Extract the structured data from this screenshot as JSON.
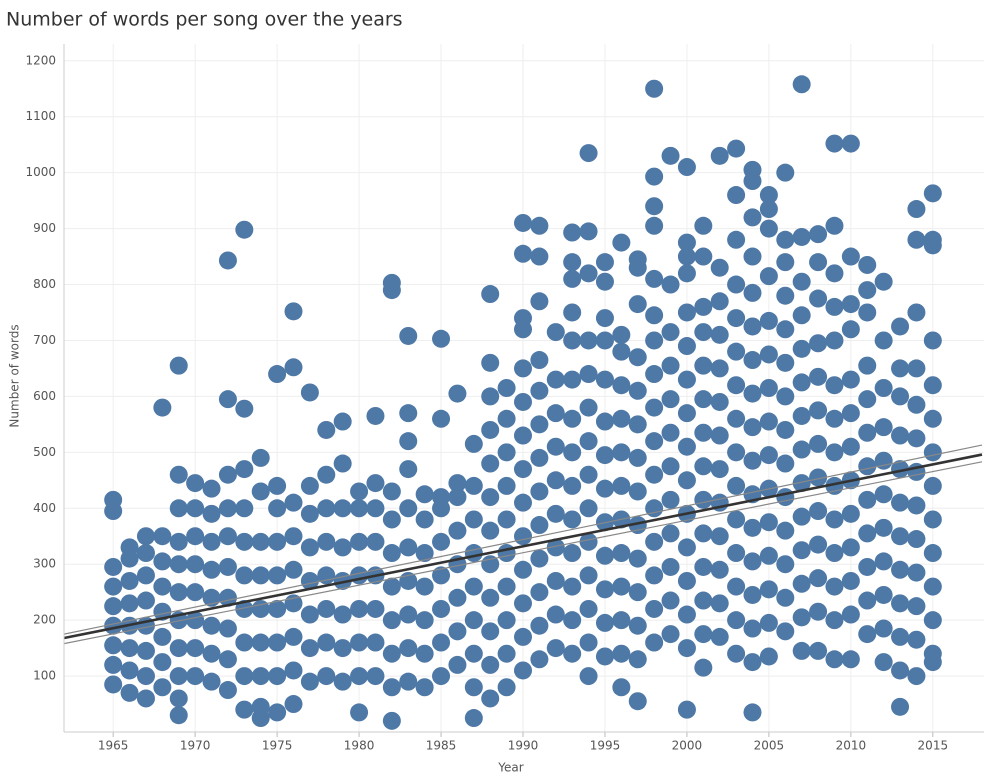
{
  "chart_data": {
    "type": "scatter",
    "title": "Number of words per song over the years",
    "x_label": "Year",
    "y_label": "Number of words",
    "color": "#4e78a6",
    "grid": true,
    "xlim": [
      1962,
      2018
    ],
    "xticks": [
      1965,
      1970,
      1975,
      1980,
      1985,
      1990,
      1995,
      2000,
      2005,
      2010,
      2015
    ],
    "ylim": [
      0,
      1230
    ],
    "yticks": [
      100,
      200,
      300,
      400,
      500,
      600,
      700,
      800,
      900,
      1000,
      1100,
      1200
    ],
    "trend": {
      "x": [
        1962,
        2018
      ],
      "y": [
        168,
        496
      ]
    },
    "trend_upper": {
      "x": [
        1962,
        2018
      ],
      "y": [
        175,
        513
      ]
    },
    "trend_lower": {
      "x": [
        1962,
        2018
      ],
      "y": [
        158,
        483
      ]
    },
    "groups": [
      {
        "x": 1965,
        "values": [
          85,
          120,
          155,
          190,
          225,
          260,
          295,
          395,
          415
        ]
      },
      {
        "x": 1966,
        "values": [
          70,
          110,
          150,
          190,
          230,
          270,
          310,
          330
        ]
      },
      {
        "x": 1967,
        "values": [
          60,
          100,
          145,
          190,
          235,
          280,
          320,
          350
        ]
      },
      {
        "x": 1968,
        "values": [
          80,
          125,
          170,
          215,
          260,
          305,
          350,
          580
        ]
      },
      {
        "x": 1969,
        "values": [
          30,
          60,
          100,
          150,
          200,
          250,
          300,
          340,
          400,
          460,
          655
        ]
      },
      {
        "x": 1970,
        "values": [
          100,
          150,
          200,
          250,
          300,
          350,
          400,
          445
        ]
      },
      {
        "x": 1971,
        "values": [
          90,
          140,
          190,
          240,
          290,
          340,
          390,
          435
        ]
      },
      {
        "x": 1972,
        "values": [
          75,
          130,
          185,
          240,
          295,
          350,
          400,
          460,
          595,
          843
        ]
      },
      {
        "x": 1973,
        "values": [
          40,
          100,
          160,
          220,
          280,
          340,
          400,
          470,
          578,
          898
        ]
      },
      {
        "x": 1974,
        "values": [
          25,
          45,
          100,
          160,
          220,
          280,
          340,
          430,
          490
        ]
      },
      {
        "x": 1975,
        "values": [
          35,
          100,
          160,
          220,
          280,
          340,
          400,
          440,
          640
        ]
      },
      {
        "x": 1976,
        "values": [
          50,
          110,
          170,
          230,
          290,
          350,
          410,
          652,
          752
        ]
      },
      {
        "x": 1977,
        "values": [
          90,
          150,
          210,
          270,
          330,
          390,
          440,
          607
        ]
      },
      {
        "x": 1978,
        "values": [
          100,
          160,
          220,
          280,
          340,
          400,
          460,
          540
        ]
      },
      {
        "x": 1979,
        "values": [
          90,
          150,
          210,
          270,
          330,
          400,
          480,
          555
        ]
      },
      {
        "x": 1980,
        "values": [
          35,
          100,
          160,
          220,
          280,
          340,
          400,
          430
        ]
      },
      {
        "x": 1981,
        "values": [
          100,
          160,
          220,
          280,
          340,
          400,
          445,
          565
        ]
      },
      {
        "x": 1982,
        "values": [
          20,
          80,
          140,
          200,
          260,
          320,
          380,
          430,
          790,
          803
        ]
      },
      {
        "x": 1983,
        "values": [
          90,
          150,
          210,
          270,
          330,
          400,
          470,
          520,
          570,
          708
        ]
      },
      {
        "x": 1984,
        "values": [
          80,
          140,
          200,
          260,
          320,
          380,
          425
        ]
      },
      {
        "x": 1985,
        "values": [
          100,
          160,
          220,
          280,
          340,
          400,
          420,
          560,
          703
        ]
      },
      {
        "x": 1986,
        "values": [
          120,
          180,
          240,
          300,
          360,
          420,
          445,
          605
        ]
      },
      {
        "x": 1987,
        "values": [
          25,
          80,
          140,
          200,
          260,
          320,
          380,
          440,
          515
        ]
      },
      {
        "x": 1988,
        "values": [
          60,
          120,
          180,
          240,
          300,
          360,
          420,
          480,
          540,
          600,
          660,
          783
        ]
      },
      {
        "x": 1989,
        "values": [
          80,
          140,
          200,
          260,
          320,
          380,
          440,
          500,
          560,
          615
        ]
      },
      {
        "x": 1990,
        "values": [
          110,
          170,
          230,
          290,
          350,
          410,
          470,
          530,
          590,
          650,
          720,
          740,
          855,
          910
        ]
      },
      {
        "x": 1991,
        "values": [
          130,
          190,
          250,
          310,
          370,
          430,
          490,
          550,
          610,
          665,
          770,
          850,
          905
        ]
      },
      {
        "x": 1992,
        "values": [
          150,
          210,
          270,
          330,
          390,
          450,
          510,
          570,
          630,
          715
        ]
      },
      {
        "x": 1993,
        "values": [
          140,
          200,
          260,
          320,
          380,
          440,
          500,
          560,
          630,
          700,
          750,
          810,
          840,
          893
        ]
      },
      {
        "x": 1994,
        "values": [
          100,
          160,
          220,
          280,
          340,
          400,
          460,
          520,
          580,
          640,
          700,
          820,
          895,
          1035
        ]
      },
      {
        "x": 1995,
        "values": [
          135,
          195,
          255,
          315,
          375,
          435,
          495,
          555,
          630,
          700,
          740,
          805,
          840
        ]
      },
      {
        "x": 1996,
        "values": [
          80,
          140,
          200,
          260,
          320,
          380,
          440,
          500,
          560,
          620,
          680,
          710,
          875
        ]
      },
      {
        "x": 1997,
        "values": [
          55,
          130,
          190,
          250,
          310,
          370,
          430,
          490,
          550,
          610,
          670,
          765,
          830,
          845
        ]
      },
      {
        "x": 1998,
        "values": [
          160,
          220,
          280,
          340,
          400,
          460,
          520,
          580,
          640,
          700,
          745,
          810,
          905,
          940,
          993,
          1150
        ]
      },
      {
        "x": 1999,
        "values": [
          175,
          235,
          295,
          355,
          415,
          475,
          535,
          595,
          655,
          715,
          800,
          1030
        ]
      },
      {
        "x": 2000,
        "values": [
          40,
          150,
          210,
          270,
          330,
          390,
          450,
          510,
          570,
          630,
          690,
          750,
          820,
          850,
          875,
          1010
        ]
      },
      {
        "x": 2001,
        "values": [
          115,
          175,
          235,
          295,
          355,
          415,
          475,
          535,
          595,
          655,
          715,
          760,
          850,
          905
        ]
      },
      {
        "x": 2002,
        "values": [
          170,
          230,
          290,
          350,
          410,
          470,
          530,
          590,
          650,
          710,
          770,
          830,
          1030
        ]
      },
      {
        "x": 2003,
        "values": [
          140,
          200,
          260,
          320,
          380,
          440,
          500,
          560,
          620,
          680,
          740,
          800,
          880,
          960,
          1043
        ]
      },
      {
        "x": 2004,
        "values": [
          35,
          125,
          185,
          245,
          305,
          365,
          425,
          485,
          545,
          605,
          665,
          725,
          785,
          850,
          920,
          985,
          1005
        ]
      },
      {
        "x": 2005,
        "values": [
          135,
          195,
          255,
          315,
          375,
          435,
          495,
          555,
          615,
          675,
          735,
          815,
          900,
          935,
          960
        ]
      },
      {
        "x": 2006,
        "values": [
          180,
          240,
          300,
          360,
          420,
          480,
          540,
          600,
          660,
          720,
          780,
          840,
          880,
          1000
        ]
      },
      {
        "x": 2007,
        "values": [
          145,
          205,
          265,
          325,
          385,
          445,
          505,
          565,
          625,
          685,
          745,
          805,
          885,
          1158
        ]
      },
      {
        "x": 2008,
        "values": [
          145,
          215,
          275,
          335,
          395,
          455,
          515,
          575,
          635,
          695,
          775,
          840,
          890
        ]
      },
      {
        "x": 2009,
        "values": [
          130,
          200,
          260,
          320,
          380,
          440,
          500,
          560,
          620,
          700,
          760,
          820,
          905,
          1052
        ]
      },
      {
        "x": 2010,
        "values": [
          130,
          210,
          270,
          330,
          390,
          450,
          510,
          570,
          630,
          720,
          765,
          850,
          1052
        ]
      },
      {
        "x": 2011,
        "values": [
          175,
          235,
          295,
          355,
          415,
          475,
          535,
          595,
          655,
          750,
          790,
          835
        ]
      },
      {
        "x": 2012,
        "values": [
          125,
          185,
          245,
          305,
          365,
          425,
          485,
          545,
          615,
          700,
          805
        ]
      },
      {
        "x": 2013,
        "values": [
          45,
          110,
          170,
          230,
          290,
          350,
          410,
          470,
          530,
          600,
          650,
          725
        ]
      },
      {
        "x": 2014,
        "values": [
          100,
          165,
          225,
          285,
          345,
          405,
          465,
          525,
          585,
          650,
          750,
          880,
          935
        ]
      },
      {
        "x": 2015,
        "values": [
          125,
          140,
          200,
          260,
          320,
          380,
          440,
          500,
          560,
          620,
          700,
          870,
          880,
          963
        ]
      }
    ]
  }
}
